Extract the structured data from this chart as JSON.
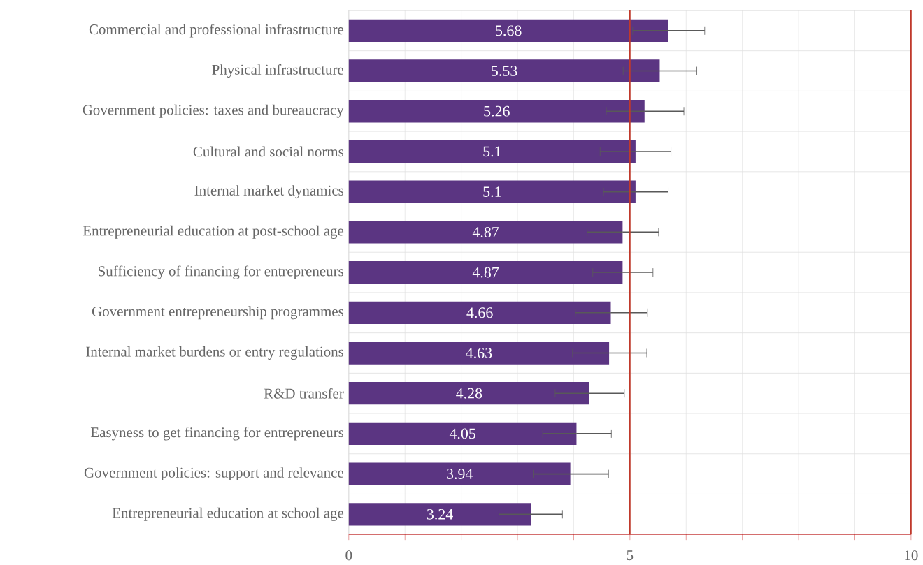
{
  "chart_data": {
    "type": "bar",
    "orientation": "horizontal",
    "categories": [
      "Commercial and professional infrastructure",
      "Physical infrastructure",
      "Government policies: taxes and bureaucracy",
      "Cultural and social norms",
      "Internal market dynamics",
      "Entrepreneurial education at post-school age",
      "Sufficiency of financing for entrepreneurs",
      "Government entrepreneurship programmes",
      "Internal market burdens or entry regulations",
      "R&D transfer",
      "Easyness to get financing for entrepreneurs",
      "Government policies: support and relevance",
      "Entrepreneurial education at school age"
    ],
    "values": [
      5.68,
      5.53,
      5.26,
      5.1,
      5.1,
      4.87,
      4.87,
      4.66,
      4.63,
      4.28,
      4.05,
      3.94,
      3.24
    ],
    "errors": [
      [
        5.05,
        6.33
      ],
      [
        4.88,
        6.19
      ],
      [
        4.58,
        5.96
      ],
      [
        4.47,
        5.73
      ],
      [
        4.53,
        5.68
      ],
      [
        4.24,
        5.51
      ],
      [
        4.34,
        5.41
      ],
      [
        4.03,
        5.31
      ],
      [
        3.98,
        5.3
      ],
      [
        3.67,
        4.9
      ],
      [
        3.45,
        4.67
      ],
      [
        3.28,
        4.62
      ],
      [
        2.67,
        3.8
      ]
    ],
    "color": "#5b3582",
    "data_labels": true,
    "xlim": [
      0,
      10
    ],
    "xticks": [
      0,
      {
        "value": 1,
        "label": null
      },
      {
        "value": 2,
        "label": null
      },
      {
        "value": 3,
        "label": null
      },
      {
        "value": 4,
        "label": null
      },
      5,
      {
        "value": 6,
        "label": null
      },
      {
        "value": 7,
        "label": null
      },
      {
        "value": 8,
        "label": null
      },
      {
        "value": 9,
        "label": null
      },
      10
    ],
    "grid": true,
    "ref_lines": [
      {
        "axis": "x",
        "value": 5,
        "color": "#c0392b"
      },
      {
        "axis": "x",
        "value": 10,
        "color": "#c0392b"
      }
    ]
  }
}
